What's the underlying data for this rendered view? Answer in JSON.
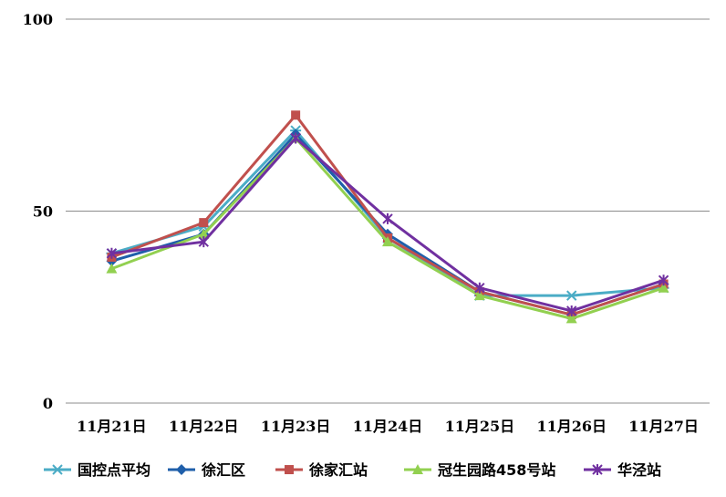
{
  "chart_data": {
    "type": "line",
    "title": "",
    "xlabel": "",
    "ylabel": "",
    "categories": [
      "11月21日",
      "11月22日",
      "11月23日",
      "11月24日",
      "11月25日",
      "11月26日",
      "11月27日"
    ],
    "ylim": [
      0,
      100
    ],
    "yticks": [
      0,
      50,
      100
    ],
    "grid": true,
    "legend_position": "bottom",
    "series": [
      {
        "name": "国控点平均",
        "color": "#4BACC6",
        "marker": "asterisk",
        "values": [
          39,
          46,
          71,
          43,
          28,
          28,
          30
        ]
      },
      {
        "name": "徐汇区",
        "color": "#1F5FAA",
        "marker": "diamond",
        "values": [
          37,
          44,
          70,
          44,
          29,
          23,
          31
        ]
      },
      {
        "name": "徐家汇站",
        "color": "#C0504D",
        "marker": "square",
        "values": [
          38,
          47,
          75,
          43,
          29,
          23,
          31
        ]
      },
      {
        "name": "冠生园路458号站",
        "color": "#92D050",
        "marker": "triangle",
        "values": [
          35,
          44,
          69,
          42,
          28,
          22,
          30
        ]
      },
      {
        "name": "华泾站",
        "color": "#7030A0",
        "marker": "star",
        "values": [
          39,
          42,
          69,
          48,
          30,
          24,
          32
        ]
      }
    ]
  }
}
